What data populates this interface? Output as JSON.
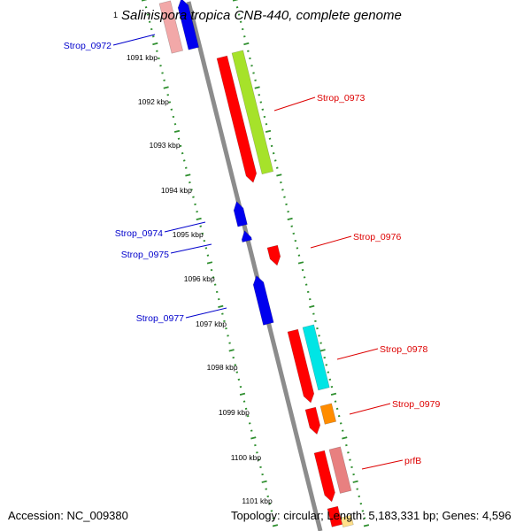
{
  "map_title": {
    "number": "1",
    "text": "Salinispora tropica CNB-440, complete genome"
  },
  "footer": {
    "accession": "Accession: NC_009380",
    "summary": "Topology: circular; Length: 5,183,331 bp; Genes: 4,596"
  },
  "colors": {
    "backbone": "#8c8c8c",
    "tick_ring": "#2f8f2f",
    "minus_strand_label": "#0000cc",
    "plus_strand_label": "#dd0000"
  },
  "kbp_ticks": [
    "1091 kbp",
    "1092 kbp",
    "1093 kbp",
    "1094 kbp",
    "1095 kbp",
    "1096 kbp",
    "1097 kbp",
    "1098 kbp",
    "1099 kbp",
    "1100 kbp",
    "1101 kbp"
  ],
  "genes": [
    {
      "label": "Strop_0972",
      "strand": "minus",
      "feature_color": "#0000ee",
      "label_color": "#0000cc"
    },
    {
      "label": "Strop_0973",
      "strand": "plus",
      "feature_color": "#ff0000",
      "label_color": "#dd0000"
    },
    {
      "label": "Strop_0974",
      "strand": "minus",
      "feature_color": "#0000ee",
      "label_color": "#0000cc"
    },
    {
      "label": "Strop_0975",
      "strand": "minus",
      "feature_color": "#0000ee",
      "label_color": "#0000cc"
    },
    {
      "label": "Strop_0976",
      "strand": "plus",
      "feature_color": "#ff0000",
      "label_color": "#dd0000"
    },
    {
      "label": "Strop_0977",
      "strand": "minus",
      "feature_color": "#0000ee",
      "label_color": "#0000cc"
    },
    {
      "label": "Strop_0978",
      "strand": "plus",
      "feature_color": "#ff0000",
      "label_color": "#dd0000"
    },
    {
      "label": "Strop_0979",
      "strand": "plus",
      "feature_color": "#ff0000",
      "label_color": "#dd0000"
    },
    {
      "label": "prfB",
      "strand": "plus",
      "feature_color": "#ff0000",
      "label_color": "#dd0000"
    }
  ],
  "track_colors": {
    "cds_red": "#ff0000",
    "cds_blue": "#0000ee",
    "lime": "#a6e22a",
    "cyan": "#00e5e5",
    "orange": "#ff8c00",
    "pink": "#e88080",
    "light_pink": "#f2a8a8",
    "pale_yellow": "#ffe08a"
  }
}
